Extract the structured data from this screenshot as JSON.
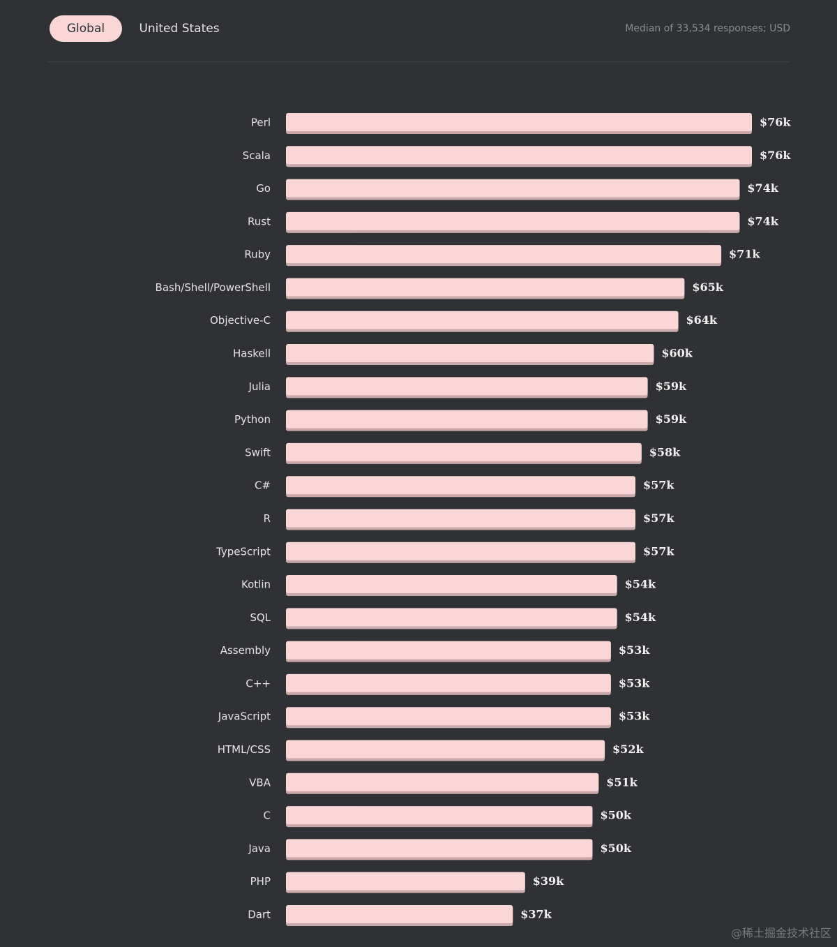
{
  "tabs": [
    "Global",
    "United States"
  ],
  "note": "Median of 33,534 responses; USD",
  "chart_data": {
    "type": "bar",
    "orientation": "horizontal",
    "color": "#fbd6d7",
    "categories": [
      "Perl",
      "Scala",
      "Go",
      "Rust",
      "Ruby",
      "Bash/Shell/PowerShell",
      "Objective-C",
      "Haskell",
      "Julia",
      "Python",
      "Swift",
      "C#",
      "R",
      "TypeScript",
      "Kotlin",
      "SQL",
      "Assembly",
      "C++",
      "JavaScript",
      "HTML/CSS",
      "VBA",
      "C",
      "Java",
      "PHP",
      "Dart"
    ],
    "values": [
      76,
      76,
      74,
      74,
      71,
      65,
      64,
      60,
      59,
      59,
      58,
      57,
      57,
      57,
      54,
      54,
      53,
      53,
      53,
      52,
      51,
      50,
      50,
      39,
      37
    ],
    "value_labels": [
      "$76k",
      "$76k",
      "$74k",
      "$74k",
      "$71k",
      "$65k",
      "$64k",
      "$60k",
      "$59k",
      "$59k",
      "$58k",
      "$57k",
      "$57k",
      "$57k",
      "$54k",
      "$54k",
      "$53k",
      "$53k",
      "$53k",
      "$52k",
      "$51k",
      "$50k",
      "$50k",
      "$39k",
      "$37k"
    ]
  },
  "watermark": "@稀土掘金技术社区"
}
